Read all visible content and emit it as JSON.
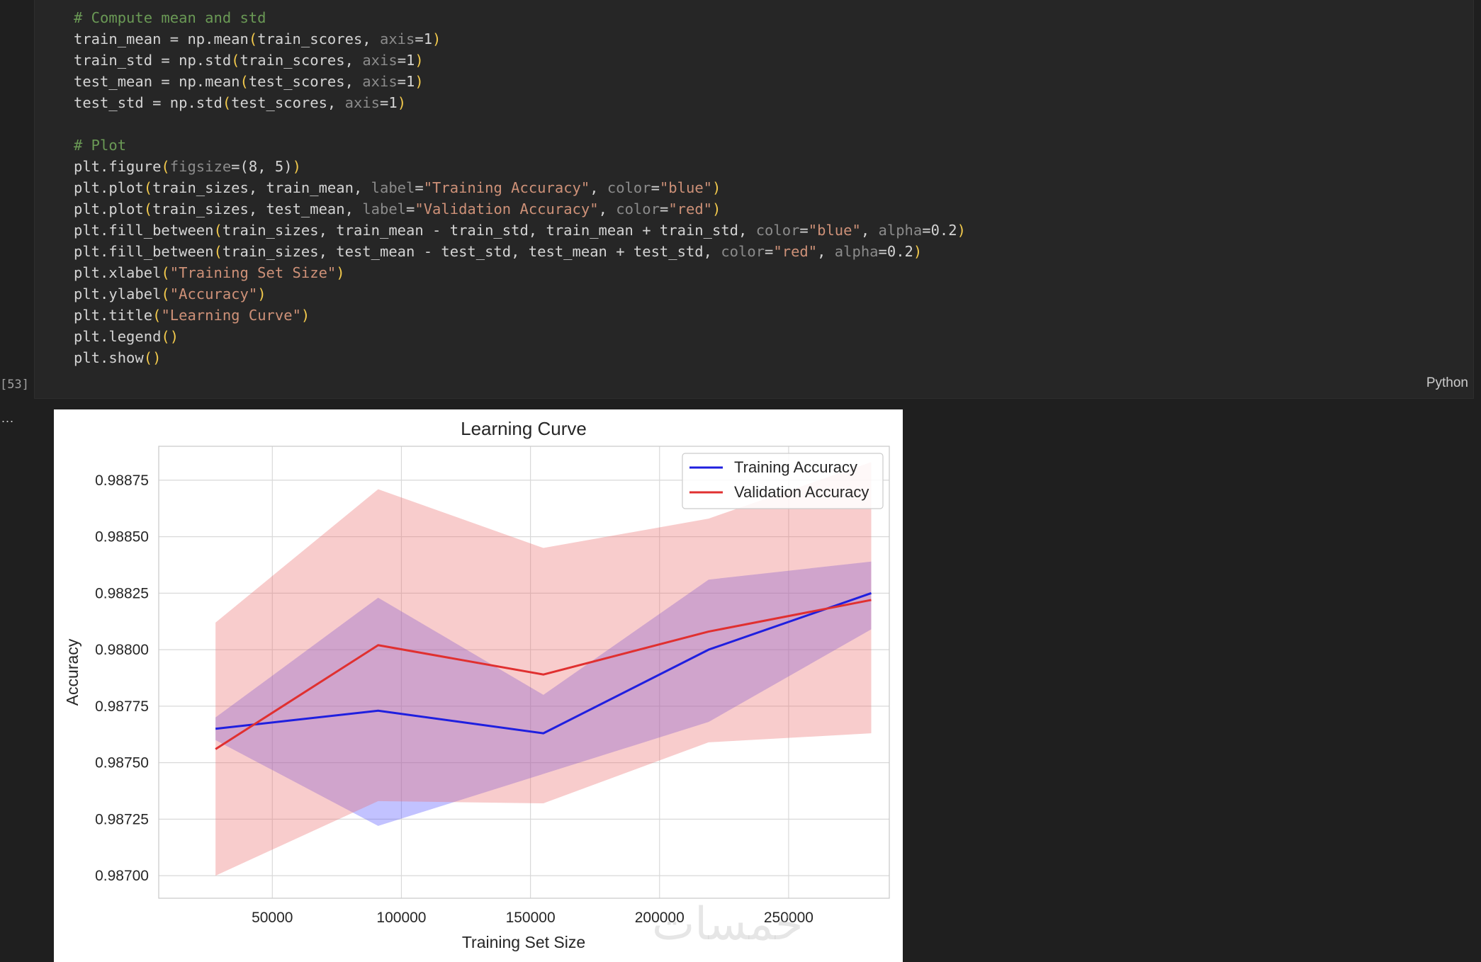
{
  "notebook": {
    "execution_count": "[53]",
    "language": "Python",
    "more_label": "..."
  },
  "code_lines": [
    [
      [
        "com",
        "# Compute mean and std"
      ]
    ],
    [
      [
        "fn",
        "train_mean = np.mean"
      ],
      [
        "par",
        "("
      ],
      [
        "fn",
        "train_scores, "
      ],
      [
        "kw",
        "axis"
      ],
      [
        "fn",
        "=1"
      ],
      [
        "par",
        ")"
      ]
    ],
    [
      [
        "fn",
        "train_std = np.std"
      ],
      [
        "par",
        "("
      ],
      [
        "fn",
        "train_scores, "
      ],
      [
        "kw",
        "axis"
      ],
      [
        "fn",
        "=1"
      ],
      [
        "par",
        ")"
      ]
    ],
    [
      [
        "fn",
        "test_mean = np.mean"
      ],
      [
        "par",
        "("
      ],
      [
        "fn",
        "test_scores, "
      ],
      [
        "kw",
        "axis"
      ],
      [
        "fn",
        "=1"
      ],
      [
        "par",
        ")"
      ]
    ],
    [
      [
        "fn",
        "test_std = np.std"
      ],
      [
        "par",
        "("
      ],
      [
        "fn",
        "test_scores, "
      ],
      [
        "kw",
        "axis"
      ],
      [
        "fn",
        "=1"
      ],
      [
        "par",
        ")"
      ]
    ],
    [],
    [
      [
        "com",
        "# Plot"
      ]
    ],
    [
      [
        "fn",
        "plt.figure"
      ],
      [
        "par",
        "("
      ],
      [
        "kw",
        "figsize"
      ],
      [
        "fn",
        "=(8, 5)"
      ],
      [
        "par",
        ")"
      ]
    ],
    [
      [
        "fn",
        "plt.plot"
      ],
      [
        "par",
        "("
      ],
      [
        "fn",
        "train_sizes, train_mean, "
      ],
      [
        "kw",
        "label"
      ],
      [
        "fn",
        "="
      ],
      [
        "str",
        "\"Training Accuracy\""
      ],
      [
        "fn",
        ", "
      ],
      [
        "kw",
        "color"
      ],
      [
        "fn",
        "="
      ],
      [
        "str",
        "\"blue\""
      ],
      [
        "par",
        ")"
      ]
    ],
    [
      [
        "fn",
        "plt.plot"
      ],
      [
        "par",
        "("
      ],
      [
        "fn",
        "train_sizes, test_mean, "
      ],
      [
        "kw",
        "label"
      ],
      [
        "fn",
        "="
      ],
      [
        "str",
        "\"Validation Accuracy\""
      ],
      [
        "fn",
        ", "
      ],
      [
        "kw",
        "color"
      ],
      [
        "fn",
        "="
      ],
      [
        "str",
        "\"red\""
      ],
      [
        "par",
        ")"
      ]
    ],
    [
      [
        "fn",
        "plt.fill_between"
      ],
      [
        "par",
        "("
      ],
      [
        "fn",
        "train_sizes, train_mean - train_std, train_mean + train_std, "
      ],
      [
        "kw",
        "color"
      ],
      [
        "fn",
        "="
      ],
      [
        "str",
        "\"blue\""
      ],
      [
        "fn",
        ", "
      ],
      [
        "kw",
        "alpha"
      ],
      [
        "fn",
        "=0.2"
      ],
      [
        "par",
        ")"
      ]
    ],
    [
      [
        "fn",
        "plt.fill_between"
      ],
      [
        "par",
        "("
      ],
      [
        "fn",
        "train_sizes, test_mean - test_std, test_mean + test_std, "
      ],
      [
        "kw",
        "color"
      ],
      [
        "fn",
        "="
      ],
      [
        "str",
        "\"red\""
      ],
      [
        "fn",
        ", "
      ],
      [
        "kw",
        "alpha"
      ],
      [
        "fn",
        "=0.2"
      ],
      [
        "par",
        ")"
      ]
    ],
    [
      [
        "fn",
        "plt.xlabel"
      ],
      [
        "par",
        "("
      ],
      [
        "str",
        "\"Training Set Size\""
      ],
      [
        "par",
        ")"
      ]
    ],
    [
      [
        "fn",
        "plt.ylabel"
      ],
      [
        "par",
        "("
      ],
      [
        "str",
        "\"Accuracy\""
      ],
      [
        "par",
        ")"
      ]
    ],
    [
      [
        "fn",
        "plt.title"
      ],
      [
        "par",
        "("
      ],
      [
        "str",
        "\"Learning Curve\""
      ],
      [
        "par",
        ")"
      ]
    ],
    [
      [
        "fn",
        "plt.legend"
      ],
      [
        "par",
        "()"
      ]
    ],
    [
      [
        "fn",
        "plt.show"
      ],
      [
        "par",
        "()"
      ]
    ]
  ],
  "watermark": "خمسات",
  "colors": {
    "train_line": "#1f1fdf",
    "val_line": "#e03030",
    "train_band": "rgba(80,80,255,0.35)",
    "val_band": "rgba(235,110,110,0.35)"
  },
  "chart_data": {
    "type": "line",
    "title": "Learning Curve",
    "xlabel": "Training Set Size",
    "ylabel": "Accuracy",
    "x": [
      28000,
      91000,
      155000,
      219000,
      282000
    ],
    "xlim": [
      6000,
      289000
    ],
    "ylim": [
      0.9869,
      0.9889
    ],
    "xticks": [
      50000,
      100000,
      150000,
      200000,
      250000
    ],
    "xtick_labels": [
      "50000",
      "100000",
      "150000",
      "200000",
      "250000"
    ],
    "yticks": [
      0.987,
      0.98725,
      0.9875,
      0.98775,
      0.988,
      0.98825,
      0.9885,
      0.98875
    ],
    "ytick_labels": [
      "0.98700",
      "0.98725",
      "0.98750",
      "0.98775",
      "0.98800",
      "0.98825",
      "0.98850",
      "0.98875"
    ],
    "grid": true,
    "legend_position": "top-right",
    "series": [
      {
        "name": "Training Accuracy",
        "values": [
          0.98765,
          0.98773,
          0.98763,
          0.988,
          0.98825
        ],
        "lower": [
          0.9876,
          0.98722,
          0.98745,
          0.98768,
          0.98809
        ],
        "upper": [
          0.9877,
          0.98823,
          0.9878,
          0.98831,
          0.98839
        ]
      },
      {
        "name": "Validation Accuracy",
        "values": [
          0.98756,
          0.98802,
          0.98789,
          0.98808,
          0.98822
        ],
        "lower": [
          0.987,
          0.98733,
          0.98732,
          0.98759,
          0.98763
        ],
        "upper": [
          0.98812,
          0.98871,
          0.98845,
          0.98858,
          0.98883
        ]
      }
    ]
  }
}
